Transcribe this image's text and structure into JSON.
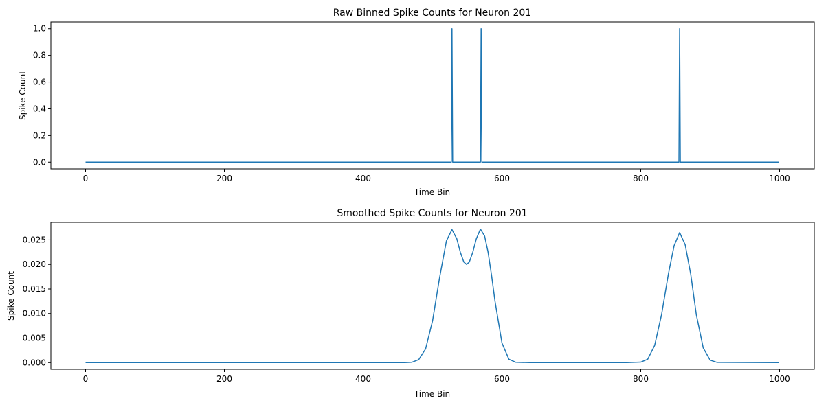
{
  "line_color": "#1f77b4",
  "chart_data": [
    {
      "type": "line",
      "title": "Raw Binned Spike Counts for Neuron 201",
      "xlabel": "Time Bin",
      "ylabel": "Spike Count",
      "xlim": [
        -50,
        1050
      ],
      "ylim": [
        -0.05,
        1.05
      ],
      "xticks": [
        0,
        200,
        400,
        600,
        800,
        1000
      ],
      "xtick_labels": [
        "0",
        "200",
        "400",
        "600",
        "800",
        "1000"
      ],
      "yticks": [
        0,
        0.2,
        0.4,
        0.6,
        0.8,
        1.0
      ],
      "ytick_labels": [
        "0.0",
        "0.2",
        "0.4",
        "0.6",
        "0.8",
        "1.0"
      ],
      "grid": false,
      "series": [
        {
          "x": [
            0,
            527,
            528,
            529,
            569,
            570,
            571,
            855,
            856,
            857,
            999
          ],
          "y": [
            0,
            0,
            1,
            0,
            0,
            1,
            0,
            0,
            1,
            0,
            0
          ]
        }
      ]
    },
    {
      "type": "line",
      "title": "Smoothed Spike Counts for Neuron 201",
      "xlabel": "Time Bin",
      "ylabel": "Spike Count",
      "xlim": [
        -50,
        1050
      ],
      "ylim": [
        -0.00136,
        0.02856
      ],
      "xticks": [
        0,
        200,
        400,
        600,
        800,
        1000
      ],
      "xtick_labels": [
        "0",
        "200",
        "400",
        "600",
        "800",
        "1000"
      ],
      "yticks": [
        0,
        0.005,
        0.01,
        0.015,
        0.02,
        0.025
      ],
      "ytick_labels": [
        "0.000",
        "0.005",
        "0.010",
        "0.015",
        "0.020",
        "0.025"
      ],
      "grid": false,
      "series": [
        {
          "x": [
            0,
            400,
            460,
            470,
            480,
            490,
            500,
            510,
            520,
            528,
            535,
            540,
            545,
            549,
            553,
            558,
            563,
            569,
            575,
            580,
            585,
            590,
            600,
            610,
            620,
            640,
            780,
            800,
            810,
            820,
            830,
            840,
            848,
            856,
            864,
            872,
            880,
            890,
            900,
            910,
            999
          ],
          "y": [
            0,
            0,
            1e-05,
            7e-05,
            0.0006,
            0.0028,
            0.0085,
            0.0172,
            0.0248,
            0.0271,
            0.0252,
            0.0225,
            0.0205,
            0.02,
            0.0205,
            0.0225,
            0.0252,
            0.0272,
            0.0258,
            0.0225,
            0.0178,
            0.0125,
            0.004,
            0.0007,
            7e-05,
            0,
            0,
            0.0001,
            0.0007,
            0.0035,
            0.0098,
            0.0182,
            0.0238,
            0.0265,
            0.024,
            0.018,
            0.0098,
            0.003,
            0.0005,
            5e-05,
            0
          ]
        }
      ]
    }
  ]
}
